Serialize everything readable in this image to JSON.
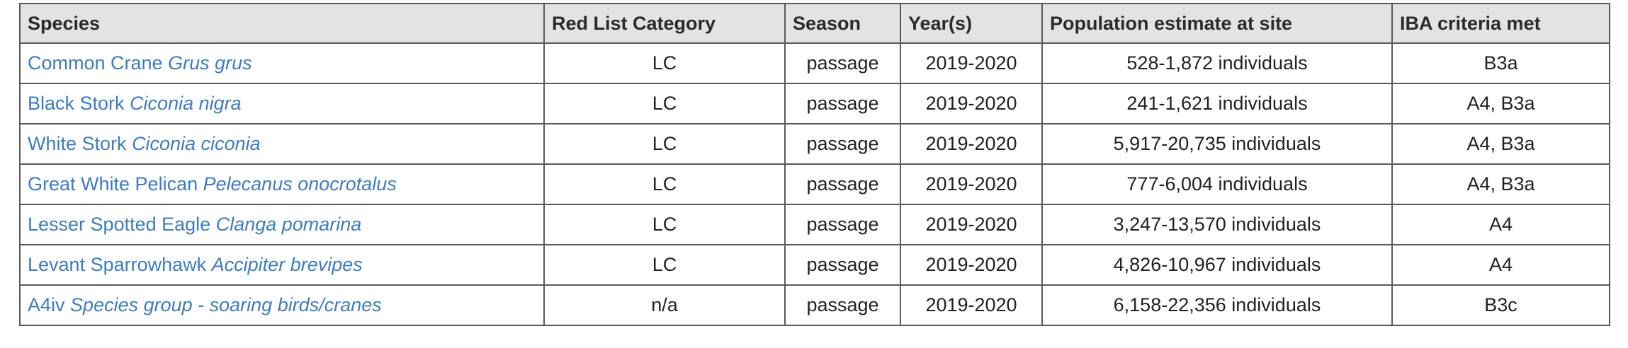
{
  "table": {
    "headers": [
      "Species",
      "Red List Category",
      "Season",
      "Year(s)",
      "Population estimate at site",
      "IBA criteria met"
    ],
    "rows": [
      {
        "common": "Common Crane",
        "scientific": "Grus grus",
        "red_list": "LC",
        "season": "passage",
        "years": "2019-2020",
        "population": "528-1,872 individuals",
        "criteria": "B3a"
      },
      {
        "common": "Black Stork",
        "scientific": "Ciconia nigra",
        "red_list": "LC",
        "season": "passage",
        "years": "2019-2020",
        "population": "241-1,621 individuals",
        "criteria": "A4, B3a"
      },
      {
        "common": "White Stork",
        "scientific": "Ciconia ciconia",
        "red_list": "LC",
        "season": "passage",
        "years": "2019-2020",
        "population": "5,917-20,735 individuals",
        "criteria": "A4, B3a"
      },
      {
        "common": "Great White Pelican",
        "scientific": "Pelecanus onocrotalus",
        "red_list": "LC",
        "season": "passage",
        "years": "2019-2020",
        "population": "777-6,004 individuals",
        "criteria": "A4, B3a"
      },
      {
        "common": "Lesser Spotted Eagle",
        "scientific": "Clanga pomarina",
        "red_list": "LC",
        "season": "passage",
        "years": "2019-2020",
        "population": "3,247-13,570 individuals",
        "criteria": "A4"
      },
      {
        "common": "Levant Sparrowhawk",
        "scientific": "Accipiter brevipes",
        "red_list": "LC",
        "season": "passage",
        "years": "2019-2020",
        "population": "4,826-10,967 individuals",
        "criteria": "A4"
      },
      {
        "common": "A4iv",
        "scientific": "Species group - soaring birds/cranes",
        "red_list": "n/a",
        "season": "passage",
        "years": "2019-2020",
        "population": "6,158-22,356 individuals",
        "criteria": "B3c"
      }
    ]
  }
}
